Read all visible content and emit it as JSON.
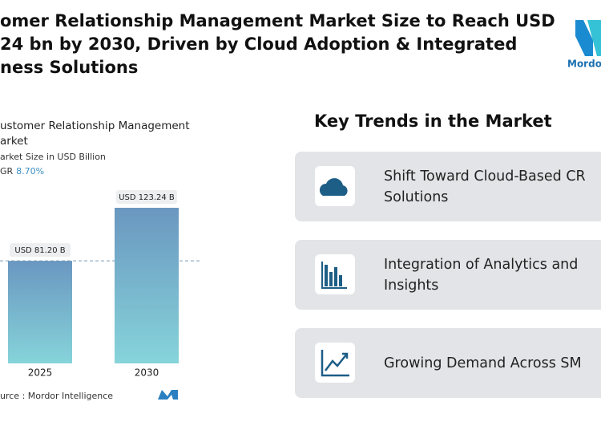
{
  "header": {
    "title_lines": [
      "omer Relationship Management Market Size to Reach USD",
      "24 bn by 2030, Driven by Cloud Adoption & Integrated",
      "ness Solutions"
    ],
    "logo_text": "Mordor"
  },
  "chart_data": {
    "type": "bar",
    "title": [
      "ustomer Relationship Management",
      "arket"
    ],
    "subtitle": "arket Size in USD Billion",
    "cagr_label": "GR",
    "cagr_value": "8.70%",
    "categories": [
      "2025",
      "2030"
    ],
    "values": [
      81.2,
      123.24
    ],
    "value_labels": [
      "USD 81.20 B",
      "USD 123.24 B"
    ],
    "source": "urce : Mordor Intelligence"
  },
  "key_trends": {
    "heading": "Key Trends in the Market",
    "items": [
      {
        "lines": [
          "Shift Toward Cloud-Based CR",
          "Solutions"
        ]
      },
      {
        "lines": [
          "Integration of Analytics and",
          "Insights"
        ]
      },
      {
        "lines": [
          "Growing Demand Across SM"
        ]
      }
    ]
  }
}
